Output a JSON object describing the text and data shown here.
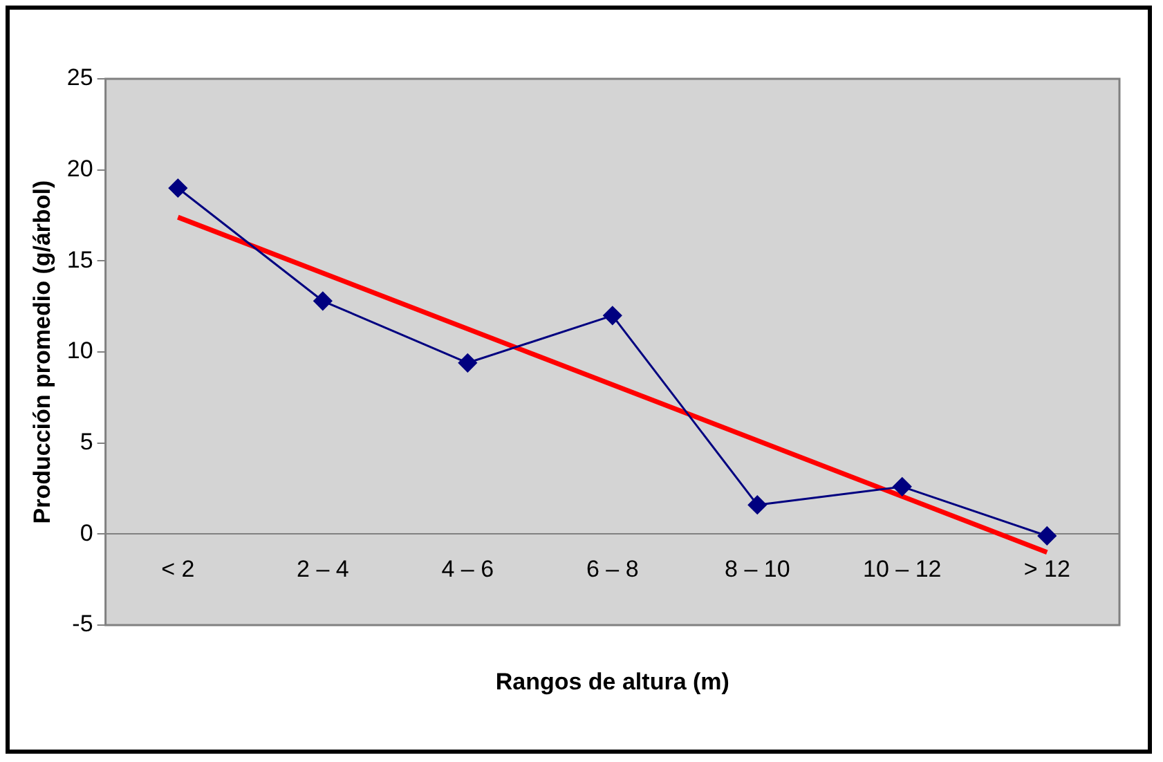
{
  "chart_data": {
    "type": "line",
    "xlabel": "Rangos de altura (m)",
    "ylabel": "Producción promedio (g/árbol)",
    "categories": [
      "< 2",
      "2 – 4",
      "4 – 6",
      "6 – 8",
      "8 – 10",
      "10 – 12",
      "> 12"
    ],
    "series": [
      {
        "color": "#000080",
        "values": [
          19,
          12.8,
          9.4,
          12,
          1.6,
          2.6,
          -0.1
        ],
        "marker": "diamond"
      },
      {
        "type": "line",
        "color": "#ff0000",
        "x": [
          "< 2",
          "> 12"
        ],
        "values": [
          17.4,
          -1.0
        ],
        "marker": "none"
      }
    ],
    "ylim": [
      -5,
      25
    ],
    "yticks": [
      -5,
      0,
      5,
      10,
      15,
      20,
      25
    ],
    "grid": false,
    "legend": false
  }
}
